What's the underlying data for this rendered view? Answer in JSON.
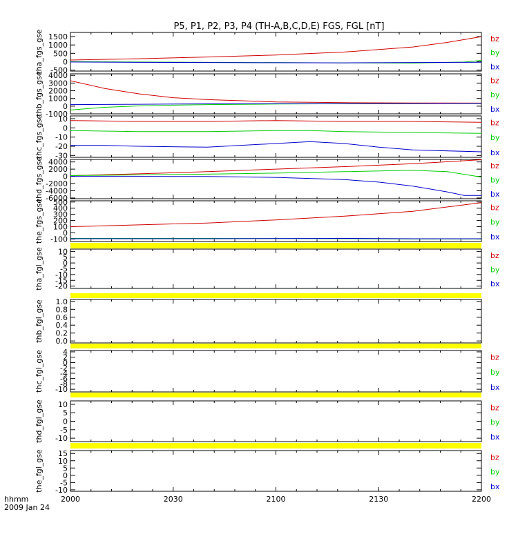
{
  "title": "P5, P1, P2, P3, P4 (TH-A,B,C,D,E) FGS, FGL [nT]",
  "footer": {
    "label_line1": "hhmm",
    "label_line2": "2009 Jan 24"
  },
  "colors": {
    "bz": "#d00000",
    "by": "#00cc00",
    "bx": "#0000cc",
    "bar": "#ffff00",
    "axis": "#000000"
  },
  "chart_data": {
    "type": "line",
    "x_ticks": [
      "2000",
      "2030",
      "2100",
      "2130",
      "2200"
    ],
    "xlim_minutes": [
      0,
      120
    ],
    "panels": [
      {
        "ylabel": "tha_fgs_gse",
        "yticks": [
          "1500",
          "1000",
          "500",
          "0",
          "-500"
        ],
        "ytick_values": [
          1500,
          1000,
          500,
          0,
          -500
        ],
        "ylim": [
          -560,
          1750
        ],
        "legend": [
          "bz",
          "by",
          "bx"
        ],
        "series": [
          {
            "name": "bz",
            "x": [
              0,
              20,
              40,
              60,
              80,
              100,
              110,
              120
            ],
            "y": [
              100,
              180,
              280,
              400,
              580,
              880,
              1150,
              1500
            ]
          },
          {
            "name": "by",
            "x": [
              0,
              40,
              80,
              100,
              115,
              120
            ],
            "y": [
              0,
              -40,
              -70,
              -80,
              -20,
              80
            ]
          },
          {
            "name": "bx",
            "x": [
              0,
              20,
              40,
              60,
              80,
              100,
              120
            ],
            "y": [
              -20,
              -40,
              -50,
              -60,
              -70,
              -50,
              -30
            ]
          }
        ]
      },
      {
        "ylabel": "thb_fgs_gse",
        "yticks": [
          "4000",
          "3000",
          "2000",
          "1000",
          "0",
          "-1000"
        ],
        "ytick_values": [
          4000,
          3000,
          2000,
          1000,
          0,
          -1000
        ],
        "ylim": [
          -1000,
          4200
        ],
        "legend": [
          "bz",
          "by",
          "bx"
        ],
        "series": [
          {
            "name": "bz",
            "x": [
              0,
              10,
              20,
              30,
              40,
              50,
              60,
              80,
              100,
              120
            ],
            "y": [
              3300,
              2300,
              1600,
              1100,
              850,
              700,
              550,
              450,
              420,
              400
            ]
          },
          {
            "name": "by",
            "x": [
              0,
              10,
              20,
              30,
              40,
              60,
              80,
              120
            ],
            "y": [
              -500,
              -150,
              30,
              130,
              200,
              270,
              310,
              350
            ]
          },
          {
            "name": "bx",
            "x": [
              0,
              20,
              40,
              60,
              80,
              100,
              120
            ],
            "y": [
              200,
              250,
              300,
              320,
              330,
              340,
              350
            ]
          }
        ]
      },
      {
        "ylabel": "thc_fgs_gse",
        "yticks": [
          "10",
          "0",
          "-10",
          "-20",
          "-30"
        ],
        "ytick_values": [
          10,
          0,
          -10,
          -20,
          -30
        ],
        "ylim": [
          -32,
          13
        ],
        "legend": [
          "bz",
          "by",
          "bx"
        ],
        "series": [
          {
            "name": "bz",
            "x": [
              0,
              20,
              40,
              60,
              80,
              100,
              120
            ],
            "y": [
              8,
              7,
              7,
              8,
              7,
              7,
              6
            ]
          },
          {
            "name": "by",
            "x": [
              0,
              20,
              40,
              60,
              70,
              80,
              100,
              120
            ],
            "y": [
              -3,
              -4,
              -4,
              -3,
              -3,
              -4,
              -5,
              -6
            ]
          },
          {
            "name": "bx",
            "x": [
              0,
              10,
              20,
              40,
              60,
              70,
              80,
              90,
              100,
              120
            ],
            "y": [
              -19,
              -19,
              -20,
              -21,
              -17,
              -15,
              -17,
              -21,
              -24,
              -26
            ]
          }
        ]
      },
      {
        "ylabel": "thd_fgs_gse",
        "yticks": [
          "4000",
          "2000",
          "0",
          "-2000",
          "-4000",
          "-6000"
        ],
        "ytick_values": [
          4000,
          2000,
          0,
          -2000,
          -4000,
          -6000
        ],
        "ylim": [
          -6200,
          4700
        ],
        "legend": [
          "bz",
          "by",
          "bx"
        ],
        "series": [
          {
            "name": "bz",
            "x": [
              0,
              20,
              40,
              60,
              80,
              100,
              120
            ],
            "y": [
              200,
              700,
              1300,
              2000,
              2700,
              3500,
              4600
            ]
          },
          {
            "name": "by",
            "x": [
              0,
              20,
              40,
              60,
              80,
              100,
              110,
              120
            ],
            "y": [
              200,
              400,
              600,
              900,
              1300,
              1700,
              1300,
              -200
            ]
          },
          {
            "name": "bx",
            "x": [
              0,
              20,
              40,
              60,
              80,
              90,
              100,
              110,
              115,
              120
            ],
            "y": [
              0,
              0,
              -50,
              -300,
              -900,
              -1600,
              -2700,
              -4300,
              -5300,
              -5300
            ]
          }
        ]
      },
      {
        "ylabel": "the_fgs_gse",
        "yticks": [
          "500",
          "400",
          "300",
          "200",
          "100",
          "0",
          "-100"
        ],
        "ytick_values": [
          500,
          400,
          300,
          200,
          100,
          0,
          -100
        ],
        "ylim": [
          -140,
          520
        ],
        "legend": [
          "bz",
          "by",
          "bx"
        ],
        "series": [
          {
            "name": "bz",
            "x": [
              0,
              20,
              40,
              60,
              80,
              100,
              120
            ],
            "y": [
              100,
              130,
              160,
              210,
              270,
              350,
              490
            ]
          },
          {
            "name": "by",
            "x": [
              0,
              40,
              80,
              100,
              120
            ],
            "y": [
              -90,
              -90,
              -95,
              -100,
              -100
            ]
          },
          {
            "name": "bx",
            "x": [
              0,
              40,
              80,
              100,
              120
            ],
            "y": [
              -95,
              -95,
              -90,
              -95,
              -95
            ]
          }
        ]
      },
      {
        "ylabel": "tha_fgl_gse",
        "yticks": [
          "10",
          "5",
          "0",
          "-5",
          "-10",
          "-15",
          "-20"
        ],
        "ytick_values": [
          10,
          5,
          0,
          -5,
          -10,
          -15,
          -20
        ],
        "ylim": [
          -22,
          12
        ],
        "legend": [
          "bz",
          "by",
          "bx"
        ],
        "series": []
      },
      {
        "ylabel": "thb_fgl_gse",
        "yticks": [
          "1.0",
          "0.8",
          "0.6",
          "0.4",
          "0.2",
          "0.0"
        ],
        "ytick_values": [
          1.0,
          0.8,
          0.6,
          0.4,
          0.2,
          0.0
        ],
        "ylim": [
          -0.05,
          1.05
        ],
        "legend": [],
        "series": []
      },
      {
        "ylabel": "thc_fgl_gse",
        "yticks": [
          "4",
          "2",
          "0",
          "-2",
          "-4",
          "-6",
          "-8",
          "-10"
        ],
        "ytick_values": [
          4,
          2,
          0,
          -2,
          -4,
          -6,
          -8,
          -10
        ],
        "ylim": [
          -11,
          4.5
        ],
        "legend": [
          "bz",
          "by",
          "bx"
        ],
        "series": []
      },
      {
        "ylabel": "thd_fgl_gse",
        "yticks": [
          "10",
          "5",
          "0",
          "-5",
          "-10"
        ],
        "ytick_values": [
          10,
          5,
          0,
          -5,
          -10
        ],
        "ylim": [
          -12,
          12
        ],
        "legend": [
          "bz",
          "by",
          "bx"
        ],
        "series": []
      },
      {
        "ylabel": "the_fgl_gse",
        "yticks": [
          "15",
          "10",
          "5",
          "0",
          "-5",
          "-10"
        ],
        "ytick_values": [
          15,
          10,
          5,
          0,
          -5,
          -10
        ],
        "ylim": [
          -11,
          17
        ],
        "legend": [
          "bz",
          "by",
          "bx"
        ],
        "series": []
      }
    ]
  }
}
